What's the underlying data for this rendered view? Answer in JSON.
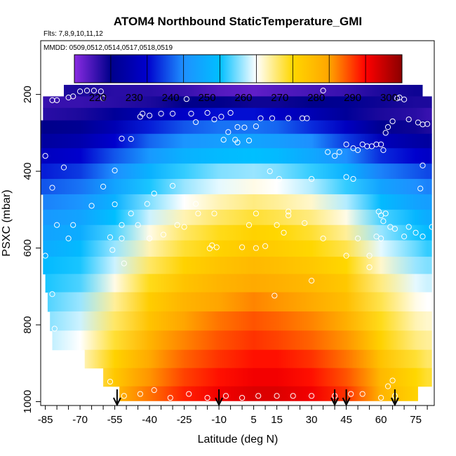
{
  "chart_data": {
    "type": "heatmap",
    "title": "ATOM4 Northbound StaticTemperature_GMI",
    "subtitle_flights": "Flts: 7,8,9,10,11,12",
    "subtitle_dates": "MMDD: 0509,0512,0514,0517,0518,0519",
    "xlabel": "Latitude (deg N)",
    "ylabel": "PSXC (mbar)",
    "xlim": [
      -87,
      83
    ],
    "ylim": [
      1010,
      60
    ],
    "y_reversed": true,
    "x_ticks": [
      -85,
      -70,
      -55,
      -40,
      -25,
      -10,
      5,
      15,
      30,
      45,
      60,
      75
    ],
    "y_ticks": [
      200,
      400,
      600,
      800,
      1000
    ],
    "colorbar": {
      "placement": "top",
      "range": [
        210,
        300
      ],
      "ticks": [
        220,
        230,
        240,
        250,
        260,
        270,
        280,
        290,
        300
      ],
      "colors": [
        "#8a2be2",
        "#00008b",
        "#0000cd",
        "#1e90ff",
        "#00bfff",
        "#ffffff",
        "#ffd700",
        "#ffa500",
        "#ff0000",
        "#8b0000"
      ]
    },
    "pressure_levels": [
      190,
      220,
      250,
      285,
      320,
      360,
      400,
      440,
      480,
      520,
      560,
      600,
      645,
      690,
      740,
      790,
      840,
      890,
      935,
      985
    ],
    "latitude_samples": [
      -85,
      -70,
      -55,
      -40,
      -25,
      -10,
      5,
      15,
      30,
      45,
      60,
      75,
      80
    ],
    "level_extents": [
      {
        "p": 190,
        "lat_min": -77,
        "lat_max": 78
      },
      {
        "p": 220,
        "lat_min": -86,
        "lat_max": 82
      },
      {
        "p": 250,
        "lat_min": -86,
        "lat_max": 82
      },
      {
        "p": 285,
        "lat_min": -87,
        "lat_max": 82
      },
      {
        "p": 320,
        "lat_min": -87,
        "lat_max": 82
      },
      {
        "p": 360,
        "lat_min": -87,
        "lat_max": 82
      },
      {
        "p": 400,
        "lat_min": -87,
        "lat_max": 82
      },
      {
        "p": 440,
        "lat_min": -87,
        "lat_max": 82
      },
      {
        "p": 480,
        "lat_min": -86,
        "lat_max": 82
      },
      {
        "p": 520,
        "lat_min": -86,
        "lat_max": 82
      },
      {
        "p": 560,
        "lat_min": -86,
        "lat_max": 82
      },
      {
        "p": 600,
        "lat_min": -86,
        "lat_max": 82
      },
      {
        "p": 645,
        "lat_min": -86,
        "lat_max": 82
      },
      {
        "p": 690,
        "lat_min": -85,
        "lat_max": 82
      },
      {
        "p": 740,
        "lat_min": -84,
        "lat_max": 82
      },
      {
        "p": 790,
        "lat_min": -83,
        "lat_max": 82
      },
      {
        "p": 840,
        "lat_min": -82,
        "lat_max": 82
      },
      {
        "p": 890,
        "lat_min": -68,
        "lat_max": 82
      },
      {
        "p": 935,
        "lat_min": -60,
        "lat_max": 82
      },
      {
        "p": 985,
        "lat_min": -53,
        "lat_max": 76
      }
    ],
    "temperature_K": [
      [
        218,
        218,
        217,
        217,
        216,
        214,
        213,
        214,
        215,
        216,
        218,
        219,
        219
      ],
      [
        216,
        216,
        217,
        218,
        220,
        220,
        219,
        219,
        220,
        221,
        219,
        218,
        218
      ],
      [
        217,
        218,
        222,
        226,
        229,
        231,
        231,
        229,
        226,
        222,
        218,
        217,
        216
      ],
      [
        220,
        221,
        226,
        232,
        236,
        238,
        238,
        237,
        233,
        228,
        221,
        219,
        218
      ],
      [
        223,
        225,
        230,
        237,
        241,
        243,
        244,
        243,
        240,
        234,
        227,
        224,
        223
      ],
      [
        228,
        230,
        236,
        242,
        247,
        249,
        250,
        249,
        245,
        240,
        233,
        230,
        229
      ],
      [
        232,
        234,
        240,
        247,
        252,
        255,
        256,
        255,
        252,
        247,
        239,
        236,
        235
      ],
      [
        236,
        238,
        244,
        251,
        256,
        259,
        261,
        260,
        257,
        252,
        244,
        240,
        239
      ],
      [
        239,
        241,
        247,
        255,
        260,
        263,
        265,
        264,
        262,
        257,
        249,
        244,
        243
      ],
      [
        242,
        244,
        250,
        258,
        263,
        266,
        268,
        267,
        265,
        261,
        253,
        248,
        246
      ],
      [
        244,
        246,
        253,
        261,
        266,
        269,
        271,
        270,
        268,
        264,
        256,
        251,
        249
      ],
      [
        246,
        249,
        256,
        263,
        268,
        271,
        273,
        272,
        270,
        267,
        259,
        254,
        252
      ],
      [
        249,
        251,
        258,
        266,
        271,
        274,
        276,
        275,
        273,
        270,
        262,
        256,
        255
      ],
      [
        251,
        253,
        261,
        269,
        274,
        277,
        279,
        278,
        276,
        273,
        265,
        259,
        258
      ],
      [
        253,
        256,
        264,
        272,
        277,
        280,
        282,
        281,
        279,
        275,
        267,
        261,
        260
      ],
      [
        255,
        258,
        266,
        274,
        280,
        283,
        285,
        284,
        282,
        278,
        269,
        263,
        262
      ],
      [
        257,
        260,
        268,
        277,
        282,
        285,
        287,
        286,
        284,
        281,
        271,
        265,
        264
      ],
      [
        259,
        262,
        271,
        279,
        284,
        287,
        289,
        289,
        287,
        283,
        274,
        268,
        266
      ],
      [
        261,
        264,
        273,
        281,
        286,
        289,
        291,
        291,
        289,
        285,
        276,
        270,
        268
      ],
      [
        263,
        266,
        275,
        283,
        288,
        291,
        293,
        293,
        291,
        287,
        277,
        271,
        270
      ]
    ],
    "observations": [
      [
        -82,
        215
      ],
      [
        -80,
        215
      ],
      [
        -75,
        208
      ],
      [
        -73,
        205
      ],
      [
        -70,
        192
      ],
      [
        -67,
        190
      ],
      [
        -64,
        190
      ],
      [
        -61,
        192
      ],
      [
        -60,
        210
      ],
      [
        -44,
        258
      ],
      [
        -43,
        250
      ],
      [
        -40,
        255
      ],
      [
        -35,
        250
      ],
      [
        -30,
        250
      ],
      [
        -24,
        212
      ],
      [
        -22,
        250
      ],
      [
        -20,
        272
      ],
      [
        -15,
        248
      ],
      [
        -12,
        265
      ],
      [
        -5,
        248
      ],
      [
        -2,
        285
      ],
      [
        6,
        283
      ],
      [
        8,
        262
      ],
      [
        13,
        262
      ],
      [
        20,
        262
      ],
      [
        26,
        262
      ],
      [
        28,
        262
      ],
      [
        35,
        190
      ],
      [
        1,
        286
      ],
      [
        -6,
        298
      ],
      [
        -9,
        258
      ],
      [
        -8,
        318
      ],
      [
        -3,
        318
      ],
      [
        -52,
        315
      ],
      [
        -48,
        316
      ],
      [
        -55,
        398
      ],
      [
        -60,
        440
      ],
      [
        -77,
        390
      ],
      [
        -85,
        360
      ],
      [
        -82,
        443
      ],
      [
        -30,
        438
      ],
      [
        -38,
        458
      ],
      [
        -41,
        485
      ],
      [
        -55,
        486
      ],
      [
        -65,
        490
      ],
      [
        -48,
        510
      ],
      [
        -52,
        540
      ],
      [
        -45,
        540
      ],
      [
        -34,
        565
      ],
      [
        -28,
        540
      ],
      [
        -25,
        545
      ],
      [
        -20,
        485
      ],
      [
        -19,
        510
      ],
      [
        -12,
        510
      ],
      [
        -2,
        325
      ],
      [
        3,
        320
      ],
      [
        12,
        400
      ],
      [
        16,
        420
      ],
      [
        30,
        420
      ],
      [
        20,
        515
      ],
      [
        20,
        505
      ],
      [
        6,
        510
      ],
      [
        3,
        540
      ],
      [
        15,
        540
      ],
      [
        18,
        560
      ],
      [
        27,
        535
      ],
      [
        35,
        575
      ],
      [
        30,
        685
      ],
      [
        45,
        330
      ],
      [
        42,
        350
      ],
      [
        48,
        340
      ],
      [
        50,
        345
      ],
      [
        52,
        330
      ],
      [
        54,
        335
      ],
      [
        56,
        335
      ],
      [
        58,
        330
      ],
      [
        60,
        330
      ],
      [
        61,
        345
      ],
      [
        62,
        300
      ],
      [
        63,
        285
      ],
      [
        65,
        270
      ],
      [
        67,
        210
      ],
      [
        68,
        208
      ],
      [
        70,
        213
      ],
      [
        72,
        265
      ],
      [
        76,
        273
      ],
      [
        78,
        278
      ],
      [
        80,
        277
      ],
      [
        78,
        385
      ],
      [
        77,
        445
      ],
      [
        60,
        515
      ],
      [
        61,
        530
      ],
      [
        64,
        545
      ],
      [
        66,
        550
      ],
      [
        70,
        570
      ],
      [
        72,
        545
      ],
      [
        75,
        560
      ],
      [
        78,
        570
      ],
      [
        82,
        545
      ],
      [
        59,
        505
      ],
      [
        62,
        510
      ],
      [
        58,
        570
      ],
      [
        40,
        360
      ],
      [
        45,
        415
      ],
      [
        48,
        420
      ],
      [
        50,
        575
      ],
      [
        55,
        620
      ],
      [
        60,
        575
      ],
      [
        45,
        620
      ],
      [
        55,
        650
      ],
      [
        10,
        595
      ],
      [
        -13,
        593
      ],
      [
        -11,
        598
      ],
      [
        -14,
        601
      ],
      [
        6,
        600
      ],
      [
        0,
        598
      ],
      [
        14,
        724
      ],
      [
        37,
        350
      ],
      [
        -40,
        575
      ],
      [
        -52,
        575
      ],
      [
        -57,
        572
      ],
      [
        -51,
        640
      ],
      [
        -56,
        605
      ],
      [
        -73,
        540
      ],
      [
        -75,
        575
      ],
      [
        -80,
        540
      ],
      [
        -85,
        620
      ],
      [
        -82,
        720
      ],
      [
        -81,
        810
      ],
      [
        -44,
        980
      ],
      [
        -38,
        970
      ],
      [
        -31,
        990
      ],
      [
        -23,
        980
      ],
      [
        -15,
        990
      ],
      [
        -7,
        985
      ],
      [
        0,
        990
      ],
      [
        7,
        985
      ],
      [
        15,
        985
      ],
      [
        22,
        985
      ],
      [
        30,
        985
      ],
      [
        40,
        985
      ],
      [
        47,
        980
      ],
      [
        52,
        980
      ],
      [
        60,
        990
      ],
      [
        63,
        960
      ],
      [
        65,
        945
      ],
      [
        66,
        985
      ],
      [
        -57,
        948
      ],
      [
        -51,
        985
      ],
      [
        -55,
        985
      ]
    ],
    "markers": [
      -54,
      -10,
      40,
      45,
      66
    ]
  }
}
